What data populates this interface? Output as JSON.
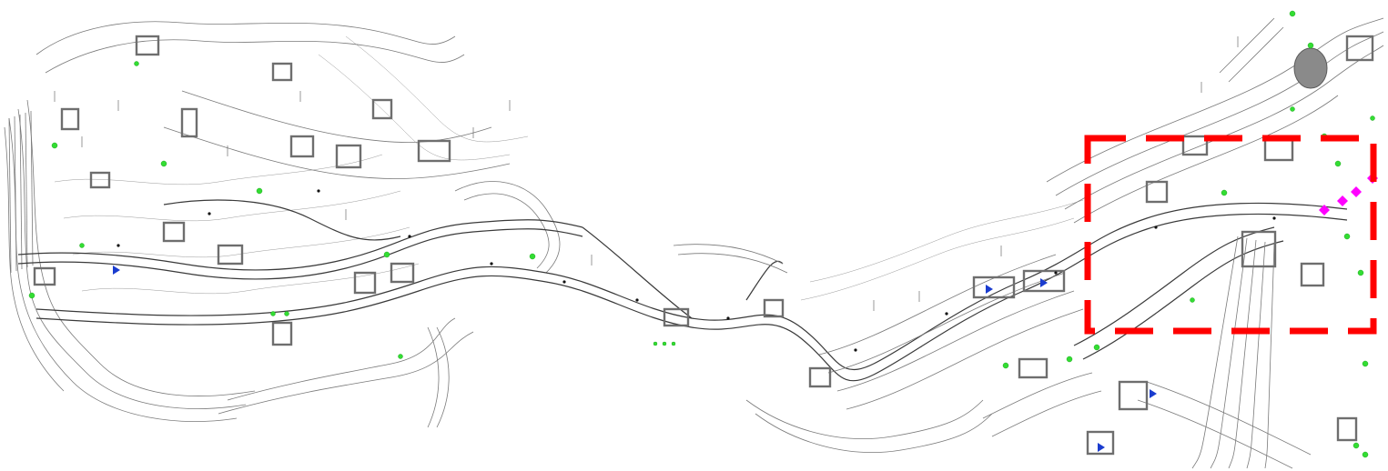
{
  "map": {
    "type": "topographic-survey-plan",
    "colors": {
      "contour": "#7a7a7a",
      "road": "#3a3a3a",
      "building": "#6e6e6e",
      "vegetation": "#33dd33",
      "highlight": "#ff0000",
      "marker": "#ff00ff",
      "flag": "#1a3ccf"
    },
    "highlight_region": {
      "style": "dashed-red-rectangle"
    }
  }
}
